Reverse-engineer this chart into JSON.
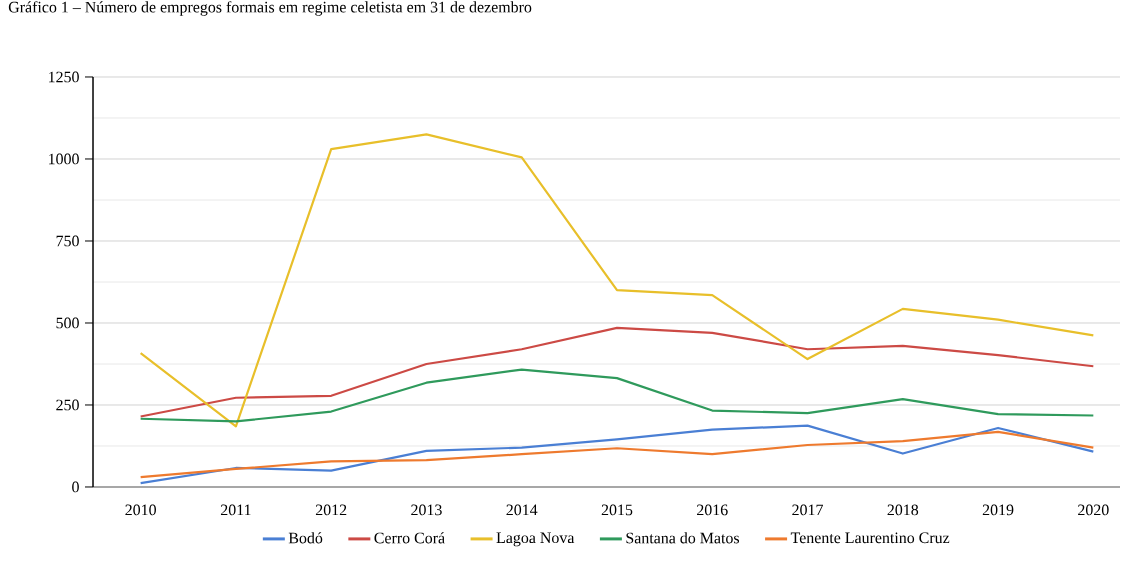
{
  "chart_data": {
    "type": "line",
    "title": "Gráfico 1 – Número de empregos formais em regime celetista em 31 de dezembro",
    "categories": [
      "2010",
      "2011",
      "2012",
      "2013",
      "2014",
      "2015",
      "2016",
      "2017",
      "2018",
      "2019",
      "2020"
    ],
    "series": [
      {
        "name": "Bodó",
        "color": "#4a7fd4",
        "values": [
          12,
          58,
          50,
          110,
          120,
          145,
          175,
          187,
          102,
          180,
          108
        ]
      },
      {
        "name": "Cerro Corá",
        "color": "#cc4a45",
        "values": [
          215,
          272,
          278,
          375,
          420,
          485,
          470,
          420,
          430,
          402,
          368
        ]
      },
      {
        "name": "Lagoa Nova",
        "color": "#e8bf2a",
        "values": [
          408,
          185,
          1030,
          1075,
          1005,
          600,
          585,
          390,
          543,
          510,
          462
        ]
      },
      {
        "name": "Santana do Matos",
        "color": "#2f9a5c",
        "values": [
          208,
          200,
          230,
          318,
          358,
          332,
          233,
          225,
          268,
          222,
          218
        ]
      },
      {
        "name": "Tenente Laurentino Cruz",
        "color": "#ee7a2e",
        "values": [
          30,
          55,
          78,
          82,
          100,
          118,
          100,
          128,
          140,
          168,
          120
        ]
      }
    ],
    "ylim": [
      0,
      1250
    ],
    "yticks": [
      0,
      250,
      500,
      750,
      1000,
      1250
    ],
    "grid": "y",
    "legend": "bottom",
    "marker": "none",
    "line_style": "solid"
  }
}
